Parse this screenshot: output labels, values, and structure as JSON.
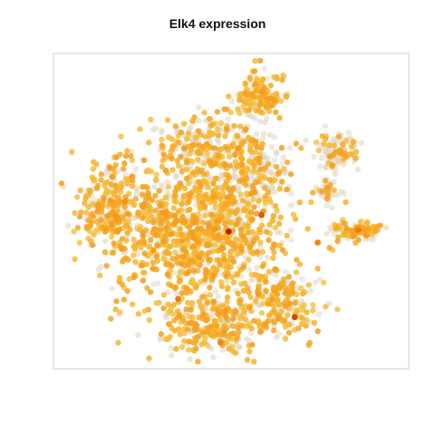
{
  "chart_data": {
    "type": "scatter",
    "title": "Elk4 expression",
    "xlabel": "",
    "ylabel": "",
    "grid": false,
    "legend": "none",
    "color_scale": [
      "#d8d8d8",
      "#f5c95a",
      "#f7b52b",
      "#f59a1e",
      "#e05a0c",
      "#b81c05"
    ],
    "expression_points": [
      {
        "x": 0.493,
        "y": 0.565,
        "level": 0.98
      },
      {
        "x": 0.68,
        "y": 0.838,
        "level": 0.86
      },
      {
        "x": 0.586,
        "y": 0.512,
        "level": 0.8
      },
      {
        "x": 0.745,
        "y": 0.6,
        "level": 0.66
      },
      {
        "x": 0.35,
        "y": 0.78,
        "level": 0.7
      },
      {
        "x": 0.86,
        "y": 0.56,
        "level": 0.7
      },
      {
        "x": 0.2,
        "y": 0.47,
        "level": 0.62
      },
      {
        "x": 0.52,
        "y": 0.3,
        "level": 0.6
      },
      {
        "x": 0.47,
        "y": 0.92,
        "level": 0.65
      }
    ],
    "clusters": [
      {
        "cx": 0.3,
        "cy": 0.56,
        "rx": 0.21,
        "ry": 0.22,
        "n": 520,
        "mean_expr": 0.55
      },
      {
        "cx": 0.48,
        "cy": 0.56,
        "rx": 0.2,
        "ry": 0.24,
        "n": 580,
        "mean_expr": 0.55
      },
      {
        "cx": 0.44,
        "cy": 0.86,
        "rx": 0.19,
        "ry": 0.11,
        "n": 300,
        "mean_expr": 0.5
      },
      {
        "cx": 0.64,
        "cy": 0.78,
        "rx": 0.12,
        "ry": 0.12,
        "n": 200,
        "mean_expr": 0.52
      },
      {
        "cx": 0.15,
        "cy": 0.48,
        "rx": 0.1,
        "ry": 0.14,
        "n": 200,
        "mean_expr": 0.55
      },
      {
        "cx": 0.43,
        "cy": 0.3,
        "rx": 0.16,
        "ry": 0.12,
        "n": 260,
        "mean_expr": 0.3
      },
      {
        "cx": 0.56,
        "cy": 0.36,
        "rx": 0.11,
        "ry": 0.13,
        "n": 170,
        "mean_expr": 0.2
      },
      {
        "cx": 0.58,
        "cy": 0.14,
        "rx": 0.08,
        "ry": 0.08,
        "n": 150,
        "mean_expr": 0.5
      },
      {
        "cx": 0.78,
        "cy": 0.44,
        "rx": 0.04,
        "ry": 0.04,
        "n": 40,
        "mean_expr": 0.2
      },
      {
        "cx": 0.8,
        "cy": 0.31,
        "rx": 0.07,
        "ry": 0.06,
        "n": 110,
        "mean_expr": 0.1
      },
      {
        "cx": 0.85,
        "cy": 0.56,
        "rx": 0.07,
        "ry": 0.04,
        "n": 90,
        "mean_expr": 0.55
      }
    ]
  }
}
